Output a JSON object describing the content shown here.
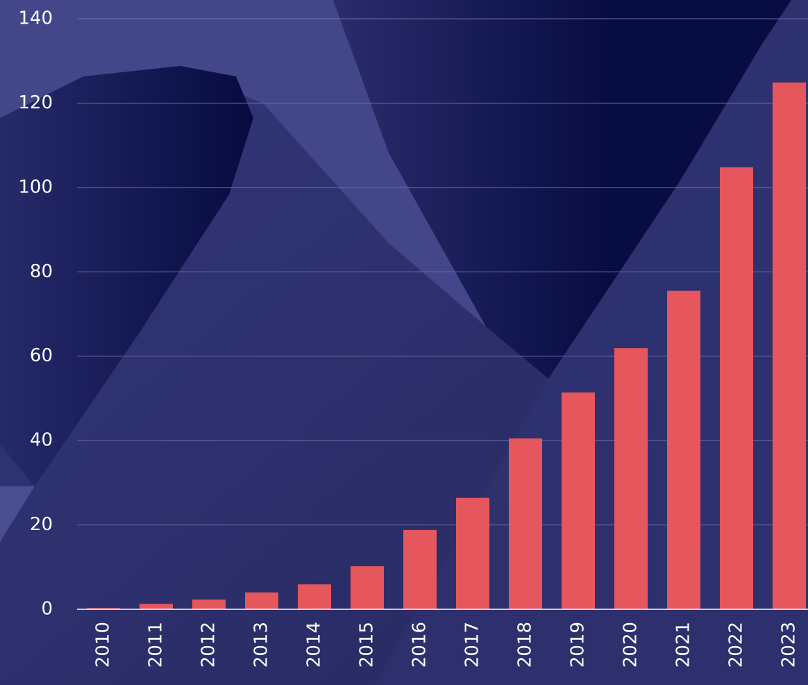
{
  "chart_data": {
    "type": "bar",
    "categories": [
      "2010",
      "2011",
      "2012",
      "2013",
      "2014",
      "2015",
      "2016",
      "2017",
      "2018",
      "2019",
      "2020",
      "2021",
      "2022",
      "2023"
    ],
    "values": [
      0.3,
      1.3,
      2.3,
      4.0,
      5.9,
      10.2,
      18.8,
      26.4,
      40.5,
      51.4,
      61.9,
      75.5,
      104.8,
      124.9
    ],
    "color": "#e5575c",
    "ylim": [
      0,
      140
    ],
    "yticks": [
      0,
      20,
      40,
      60,
      80,
      100,
      120,
      140
    ],
    "grid": true
  }
}
